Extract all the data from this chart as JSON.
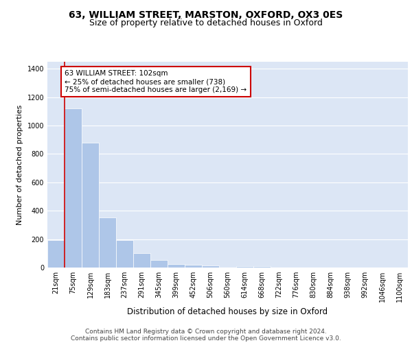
{
  "title1": "63, WILLIAM STREET, MARSTON, OXFORD, OX3 0ES",
  "title2": "Size of property relative to detached houses in Oxford",
  "xlabel": "Distribution of detached houses by size in Oxford",
  "ylabel": "Number of detached properties",
  "categories": [
    "21sqm",
    "75sqm",
    "129sqm",
    "183sqm",
    "237sqm",
    "291sqm",
    "345sqm",
    "399sqm",
    "452sqm",
    "506sqm",
    "560sqm",
    "614sqm",
    "668sqm",
    "722sqm",
    "776sqm",
    "830sqm",
    "884sqm",
    "938sqm",
    "992sqm",
    "1046sqm",
    "1100sqm"
  ],
  "values": [
    195,
    1120,
    880,
    355,
    195,
    100,
    55,
    25,
    20,
    15,
    0,
    10,
    10,
    0,
    0,
    0,
    0,
    0,
    0,
    0,
    0
  ],
  "bar_color": "#aec6e8",
  "vline_color": "#cc0000",
  "annotation_text": "63 WILLIAM STREET: 102sqm\n← 25% of detached houses are smaller (738)\n75% of semi-detached houses are larger (2,169) →",
  "annotation_box_color": "#ffffff",
  "annotation_box_edge_color": "#cc0000",
  "ylim": [
    0,
    1450
  ],
  "yticks": [
    0,
    200,
    400,
    600,
    800,
    1000,
    1200,
    1400
  ],
  "background_color": "#dce6f5",
  "footer_line1": "Contains HM Land Registry data © Crown copyright and database right 2024.",
  "footer_line2": "Contains public sector information licensed under the Open Government Licence v3.0.",
  "title1_fontsize": 10,
  "title2_fontsize": 9,
  "xlabel_fontsize": 8.5,
  "ylabel_fontsize": 8,
  "tick_fontsize": 7,
  "annotation_fontsize": 7.5,
  "footer_fontsize": 6.5,
  "vline_pos": 0.5
}
